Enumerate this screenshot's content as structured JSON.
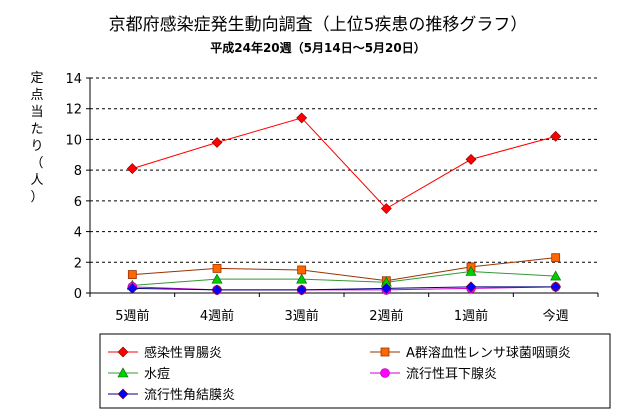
{
  "chart_data": {
    "type": "line",
    "title": "京都府感染症発生動向調査（上位5疾患の推移グラフ）",
    "subtitle": "平成24年20週（5月14日～5月20日）",
    "ylabel": "定点当たり（人）",
    "xlabel": "",
    "categories": [
      "5週前",
      "4週前",
      "3週前",
      "2週前",
      "1週前",
      "今週"
    ],
    "ylim": [
      0,
      14
    ],
    "yticks": [
      0,
      2,
      4,
      6,
      8,
      10,
      12,
      14
    ],
    "grid": true,
    "legend_position": "bottom",
    "series": [
      {
        "name": "感染性胃腸炎",
        "color": "#ff0000",
        "marker": "diamond",
        "values": [
          8.1,
          9.8,
          11.4,
          5.5,
          8.7,
          10.2
        ]
      },
      {
        "name": "A群溶血性レンサ球菌咽頭炎",
        "color": "#ff6600",
        "line_color": "#993300",
        "marker": "square",
        "values": [
          1.2,
          1.6,
          1.5,
          0.8,
          1.7,
          2.3
        ]
      },
      {
        "name": "水痘",
        "color": "#00cc00",
        "line_color": "#339933",
        "marker": "triangle",
        "values": [
          0.5,
          0.9,
          0.9,
          0.7,
          1.4,
          1.1
        ]
      },
      {
        "name": "流行性耳下腺炎",
        "color": "#ff00ff",
        "line_color": "#cc00cc",
        "marker": "circle",
        "values": [
          0.4,
          0.2,
          0.2,
          0.2,
          0.3,
          0.4
        ]
      },
      {
        "name": "流行性角結膜炎",
        "color": "#0000ff",
        "line_color": "#000080",
        "marker": "diamond",
        "values": [
          0.3,
          0.2,
          0.2,
          0.3,
          0.4,
          0.4
        ]
      }
    ]
  }
}
